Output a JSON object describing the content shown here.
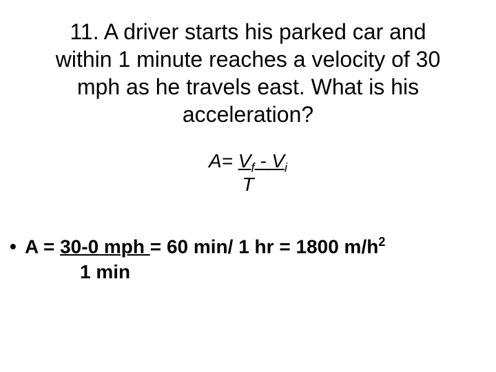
{
  "colors": {
    "background": "#ffffff",
    "text": "#000000"
  },
  "typography": {
    "font_family": "Comic Sans MS",
    "question_fontsize": 32,
    "formula_fontsize": 28,
    "answer_fontsize": 28
  },
  "question": {
    "text": "11. A driver starts his parked car and within 1 minute reaches a velocity of 30 mph as he travels east. What is his acceleration?"
  },
  "formula": {
    "lhs": "A= ",
    "numerator_vf": "V",
    "sub_f": "f",
    "numerator_minus": " - ",
    "numerator_vi": "V",
    "sub_i": "i",
    "denominator": "T"
  },
  "answer": {
    "bullet": "•",
    "lhs": "A = ",
    "frac_numerator": "30-0 mph ",
    "equals1": "= ",
    "mid": "60 min/ 1 hr ",
    "equals2": "= ",
    "result_num": "1800 m/h",
    "result_exp": "2",
    "frac_denominator": "1 min"
  }
}
